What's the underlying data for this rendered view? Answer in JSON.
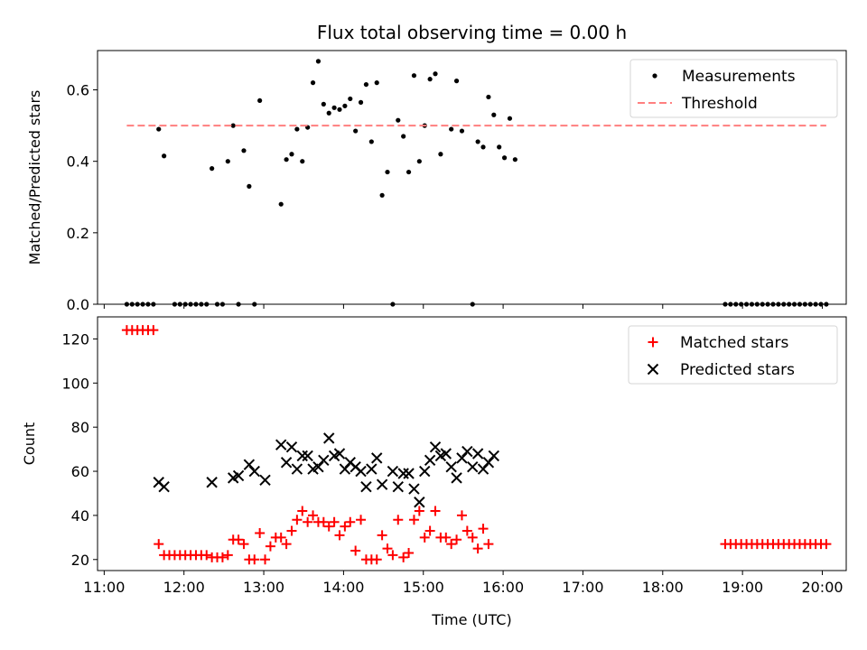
{
  "chart_data": [
    {
      "type": "scatter",
      "title": "Flux total observing time = 0.00 h",
      "xlabel": "",
      "ylabel": "Matched/Predicted stars",
      "xlim": [
        "10:55",
        "20:18"
      ],
      "ylim": [
        0,
        0.71
      ],
      "yticks": [
        0.0,
        0.2,
        0.4,
        0.6
      ],
      "ytick_labels": [
        "0.0",
        "0.2",
        "0.4",
        "0.6"
      ],
      "legend_position": "top-right",
      "series": [
        {
          "name": "Measurements",
          "kind": "points",
          "color": "#000000",
          "points": [
            [
              "11:17",
              0
            ],
            [
              "11:21",
              0
            ],
            [
              "11:25",
              0
            ],
            [
              "11:29",
              0
            ],
            [
              "11:33",
              0
            ],
            [
              "11:37",
              0
            ],
            [
              "11:41",
              0.49
            ],
            [
              "11:45",
              0.415
            ],
            [
              "11:53",
              0
            ],
            [
              "11:57",
              0
            ],
            [
              "12:01",
              0
            ],
            [
              "12:05",
              0
            ],
            [
              "12:09",
              0
            ],
            [
              "12:13",
              0
            ],
            [
              "12:17",
              0
            ],
            [
              "12:21",
              0.38
            ],
            [
              "12:25",
              0
            ],
            [
              "12:29",
              0
            ],
            [
              "12:33",
              0.4
            ],
            [
              "12:37",
              0.5
            ],
            [
              "12:41",
              0
            ],
            [
              "12:45",
              0.43
            ],
            [
              "12:49",
              0.33
            ],
            [
              "12:53",
              0
            ],
            [
              "12:57",
              0.57
            ],
            [
              "13:13",
              0.28
            ],
            [
              "13:17",
              0.405
            ],
            [
              "13:21",
              0.42
            ],
            [
              "13:25",
              0.49
            ],
            [
              "13:29",
              0.4
            ],
            [
              "13:33",
              0.495
            ],
            [
              "13:37",
              0.62
            ],
            [
              "13:41",
              0.68
            ],
            [
              "13:45",
              0.56
            ],
            [
              "13:49",
              0.535
            ],
            [
              "13:53",
              0.55
            ],
            [
              "13:57",
              0.545
            ],
            [
              "14:01",
              0.555
            ],
            [
              "14:05",
              0.575
            ],
            [
              "14:09",
              0.485
            ],
            [
              "14:13",
              0.565
            ],
            [
              "14:17",
              0.615
            ],
            [
              "14:21",
              0.455
            ],
            [
              "14:25",
              0.62
            ],
            [
              "14:29",
              0.305
            ],
            [
              "14:33",
              0.37
            ],
            [
              "14:37",
              0
            ],
            [
              "14:41",
              0.515
            ],
            [
              "14:45",
              0.47
            ],
            [
              "14:49",
              0.37
            ],
            [
              "14:53",
              0.64
            ],
            [
              "14:57",
              0.4
            ],
            [
              "15:01",
              0.5
            ],
            [
              "15:05",
              0.63
            ],
            [
              "15:09",
              0.645
            ],
            [
              "15:13",
              0.42
            ],
            [
              "15:21",
              0.49
            ],
            [
              "15:25",
              0.625
            ],
            [
              "15:29",
              0.485
            ],
            [
              "15:37",
              0
            ],
            [
              "15:41",
              0.455
            ],
            [
              "15:45",
              0.44
            ],
            [
              "15:49",
              0.58
            ],
            [
              "15:53",
              0.53
            ],
            [
              "15:57",
              0.44
            ],
            [
              "16:01",
              0.41
            ],
            [
              "16:05",
              0.52
            ],
            [
              "16:09",
              0.405
            ],
            [
              "18:47",
              0
            ],
            [
              "18:51",
              0
            ],
            [
              "18:55",
              0
            ],
            [
              "18:59",
              0
            ],
            [
              "19:03",
              0
            ],
            [
              "19:07",
              0
            ],
            [
              "19:11",
              0
            ],
            [
              "19:15",
              0
            ],
            [
              "19:19",
              0
            ],
            [
              "19:23",
              0
            ],
            [
              "19:27",
              0
            ],
            [
              "19:31",
              0
            ],
            [
              "19:35",
              0
            ],
            [
              "19:39",
              0
            ],
            [
              "19:43",
              0
            ],
            [
              "19:47",
              0
            ],
            [
              "19:51",
              0
            ],
            [
              "19:55",
              0
            ],
            [
              "19:59",
              0
            ],
            [
              "20:03",
              0
            ]
          ]
        },
        {
          "name": "Threshold",
          "kind": "dashed-line",
          "color": "#ff7f7f",
          "points": [
            [
              "11:17",
              0.5
            ],
            [
              "20:03",
              0.5
            ]
          ]
        }
      ]
    },
    {
      "type": "scatter",
      "title": "",
      "xlabel": "Time (UTC)",
      "ylabel": "Count",
      "xlim": [
        "10:55",
        "20:18"
      ],
      "ylim": [
        15,
        130
      ],
      "yticks": [
        20,
        40,
        60,
        80,
        100,
        120
      ],
      "ytick_labels": [
        "20",
        "40",
        "60",
        "80",
        "100",
        "120"
      ],
      "xticks": [
        "11:00",
        "12:00",
        "13:00",
        "14:00",
        "15:00",
        "16:00",
        "17:00",
        "18:00",
        "19:00",
        "20:00"
      ],
      "xtick_labels": [
        "11:00",
        "12:00",
        "13:00",
        "14:00",
        "15:00",
        "16:00",
        "17:00",
        "18:00",
        "19:00",
        "20:00"
      ],
      "legend_position": "top-right",
      "series": [
        {
          "name": "Matched stars",
          "kind": "plus",
          "color": "#ff0000",
          "points": [
            [
              "11:17",
              124
            ],
            [
              "11:21",
              124
            ],
            [
              "11:25",
              124
            ],
            [
              "11:29",
              124
            ],
            [
              "11:33",
              124
            ],
            [
              "11:37",
              124
            ],
            [
              "11:41",
              27
            ],
            [
              "11:45",
              22
            ],
            [
              "11:49",
              22
            ],
            [
              "11:53",
              22
            ],
            [
              "11:57",
              22
            ],
            [
              "12:01",
              22
            ],
            [
              "12:05",
              22
            ],
            [
              "12:09",
              22
            ],
            [
              "12:13",
              22
            ],
            [
              "12:17",
              22
            ],
            [
              "12:21",
              21
            ],
            [
              "12:25",
              21
            ],
            [
              "12:29",
              21
            ],
            [
              "12:33",
              22
            ],
            [
              "12:37",
              29
            ],
            [
              "12:41",
              29
            ],
            [
              "12:45",
              27
            ],
            [
              "12:49",
              20
            ],
            [
              "12:53",
              20
            ],
            [
              "12:57",
              32
            ],
            [
              "13:01",
              20
            ],
            [
              "13:05",
              26
            ],
            [
              "13:09",
              30
            ],
            [
              "13:13",
              30
            ],
            [
              "13:17",
              27
            ],
            [
              "13:21",
              33
            ],
            [
              "13:25",
              38
            ],
            [
              "13:29",
              42
            ],
            [
              "13:33",
              37
            ],
            [
              "13:37",
              40
            ],
            [
              "13:41",
              37
            ],
            [
              "13:45",
              37
            ],
            [
              "13:49",
              35
            ],
            [
              "13:53",
              37
            ],
            [
              "13:57",
              31
            ],
            [
              "14:01",
              35
            ],
            [
              "14:05",
              37
            ],
            [
              "14:09",
              24
            ],
            [
              "14:13",
              38
            ],
            [
              "14:17",
              20
            ],
            [
              "14:21",
              20
            ],
            [
              "14:25",
              20
            ],
            [
              "14:29",
              31
            ],
            [
              "14:33",
              25
            ],
            [
              "14:37",
              22
            ],
            [
              "14:41",
              38
            ],
            [
              "14:45",
              21
            ],
            [
              "14:49",
              23
            ],
            [
              "14:53",
              38
            ],
            [
              "14:57",
              42
            ],
            [
              "15:01",
              30
            ],
            [
              "15:05",
              33
            ],
            [
              "15:09",
              42
            ],
            [
              "15:13",
              30
            ],
            [
              "15:17",
              30
            ],
            [
              "15:21",
              27
            ],
            [
              "15:25",
              29
            ],
            [
              "15:29",
              40
            ],
            [
              "15:33",
              33
            ],
            [
              "15:37",
              30
            ],
            [
              "15:41",
              25
            ],
            [
              "15:45",
              34
            ],
            [
              "15:49",
              27
            ],
            [
              "18:47",
              27
            ],
            [
              "18:51",
              27
            ],
            [
              "18:55",
              27
            ],
            [
              "18:59",
              27
            ],
            [
              "19:03",
              27
            ],
            [
              "19:07",
              27
            ],
            [
              "19:11",
              27
            ],
            [
              "19:15",
              27
            ],
            [
              "19:19",
              27
            ],
            [
              "19:23",
              27
            ],
            [
              "19:27",
              27
            ],
            [
              "19:31",
              27
            ],
            [
              "19:35",
              27
            ],
            [
              "19:39",
              27
            ],
            [
              "19:43",
              27
            ],
            [
              "19:47",
              27
            ],
            [
              "19:51",
              27
            ],
            [
              "19:55",
              27
            ],
            [
              "19:59",
              27
            ],
            [
              "20:03",
              27
            ]
          ]
        },
        {
          "name": "Predicted stars",
          "kind": "cross",
          "color": "#000000",
          "points": [
            [
              "11:41",
              55
            ],
            [
              "11:45",
              53
            ],
            [
              "12:21",
              55
            ],
            [
              "12:37",
              57
            ],
            [
              "12:41",
              58
            ],
            [
              "12:49",
              63
            ],
            [
              "12:53",
              60
            ],
            [
              "13:01",
              56
            ],
            [
              "13:13",
              72
            ],
            [
              "13:17",
              64
            ],
            [
              "13:21",
              71
            ],
            [
              "13:25",
              61
            ],
            [
              "13:29",
              67
            ],
            [
              "13:33",
              67
            ],
            [
              "13:37",
              61
            ],
            [
              "13:41",
              62
            ],
            [
              "13:45",
              65
            ],
            [
              "13:49",
              75
            ],
            [
              "13:53",
              67
            ],
            [
              "13:57",
              68
            ],
            [
              "14:01",
              61
            ],
            [
              "14:05",
              64
            ],
            [
              "14:09",
              62
            ],
            [
              "14:13",
              60
            ],
            [
              "14:17",
              53
            ],
            [
              "14:21",
              61
            ],
            [
              "14:25",
              66
            ],
            [
              "14:29",
              54
            ],
            [
              "14:37",
              60
            ],
            [
              "14:41",
              53
            ],
            [
              "14:45",
              59
            ],
            [
              "14:49",
              59
            ],
            [
              "14:53",
              52
            ],
            [
              "14:57",
              46
            ],
            [
              "15:01",
              60
            ],
            [
              "15:05",
              65
            ],
            [
              "15:09",
              71
            ],
            [
              "15:13",
              67
            ],
            [
              "15:17",
              68
            ],
            [
              "15:21",
              62
            ],
            [
              "15:25",
              57
            ],
            [
              "15:29",
              66
            ],
            [
              "15:33",
              69
            ],
            [
              "15:37",
              62
            ],
            [
              "15:41",
              68
            ],
            [
              "15:45",
              61
            ],
            [
              "15:49",
              64
            ],
            [
              "15:53",
              67
            ]
          ]
        }
      ]
    }
  ]
}
